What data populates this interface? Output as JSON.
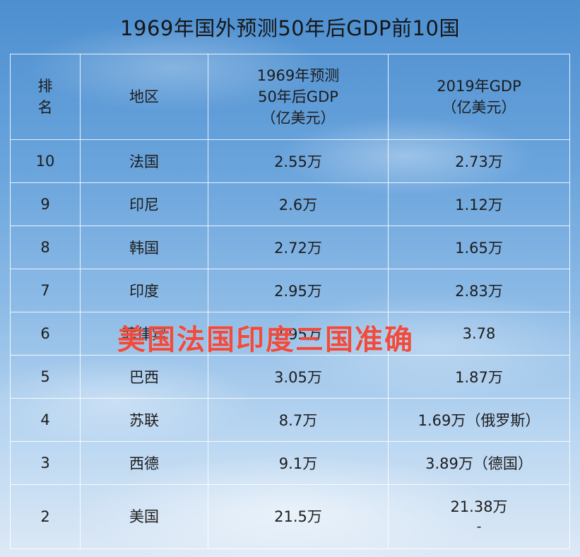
{
  "title": "1969年国外预测50年后GDP前10国",
  "table": {
    "headers": {
      "rank": [
        "排",
        "名"
      ],
      "region": "地区",
      "prediction": [
        "1969年预测",
        "50年后GDP",
        "（亿美元）"
      ],
      "gdp2019": [
        "2019年GDP",
        "（亿美元）"
      ]
    },
    "rows": [
      {
        "rank": "10",
        "region": "法国",
        "prediction": "2.55万",
        "gdp2019": "2.73万"
      },
      {
        "rank": "9",
        "region": "印尼",
        "prediction": "2.6万",
        "gdp2019": "1.12万"
      },
      {
        "rank": "8",
        "region": "韩国",
        "prediction": "2.72万",
        "gdp2019": "1.65万"
      },
      {
        "rank": "7",
        "region": "印度",
        "prediction": "2.95万",
        "gdp2019": "2.83万"
      },
      {
        "rank": "6",
        "region": "菲律宾",
        "prediction": "2.95万",
        "gdp2019": "3.78"
      },
      {
        "rank": "5",
        "region": "巴西",
        "prediction": "3.05万",
        "gdp2019": "1.87万"
      },
      {
        "rank": "4",
        "region": "苏联",
        "prediction": "8.7万",
        "gdp2019": "1.69万（俄罗斯）"
      },
      {
        "rank": "3",
        "region": "西德",
        "prediction": "9.1万",
        "gdp2019": "3.89万（德国）"
      },
      {
        "rank": "2",
        "region": "美国",
        "prediction": "21.5万",
        "gdp2019": "21.38万",
        "gdp2019_sub": "-"
      }
    ]
  },
  "overlay_text": "美国法国印度三国准确",
  "colors": {
    "overlay": "#f04b3c",
    "grid": "#ffffff"
  }
}
